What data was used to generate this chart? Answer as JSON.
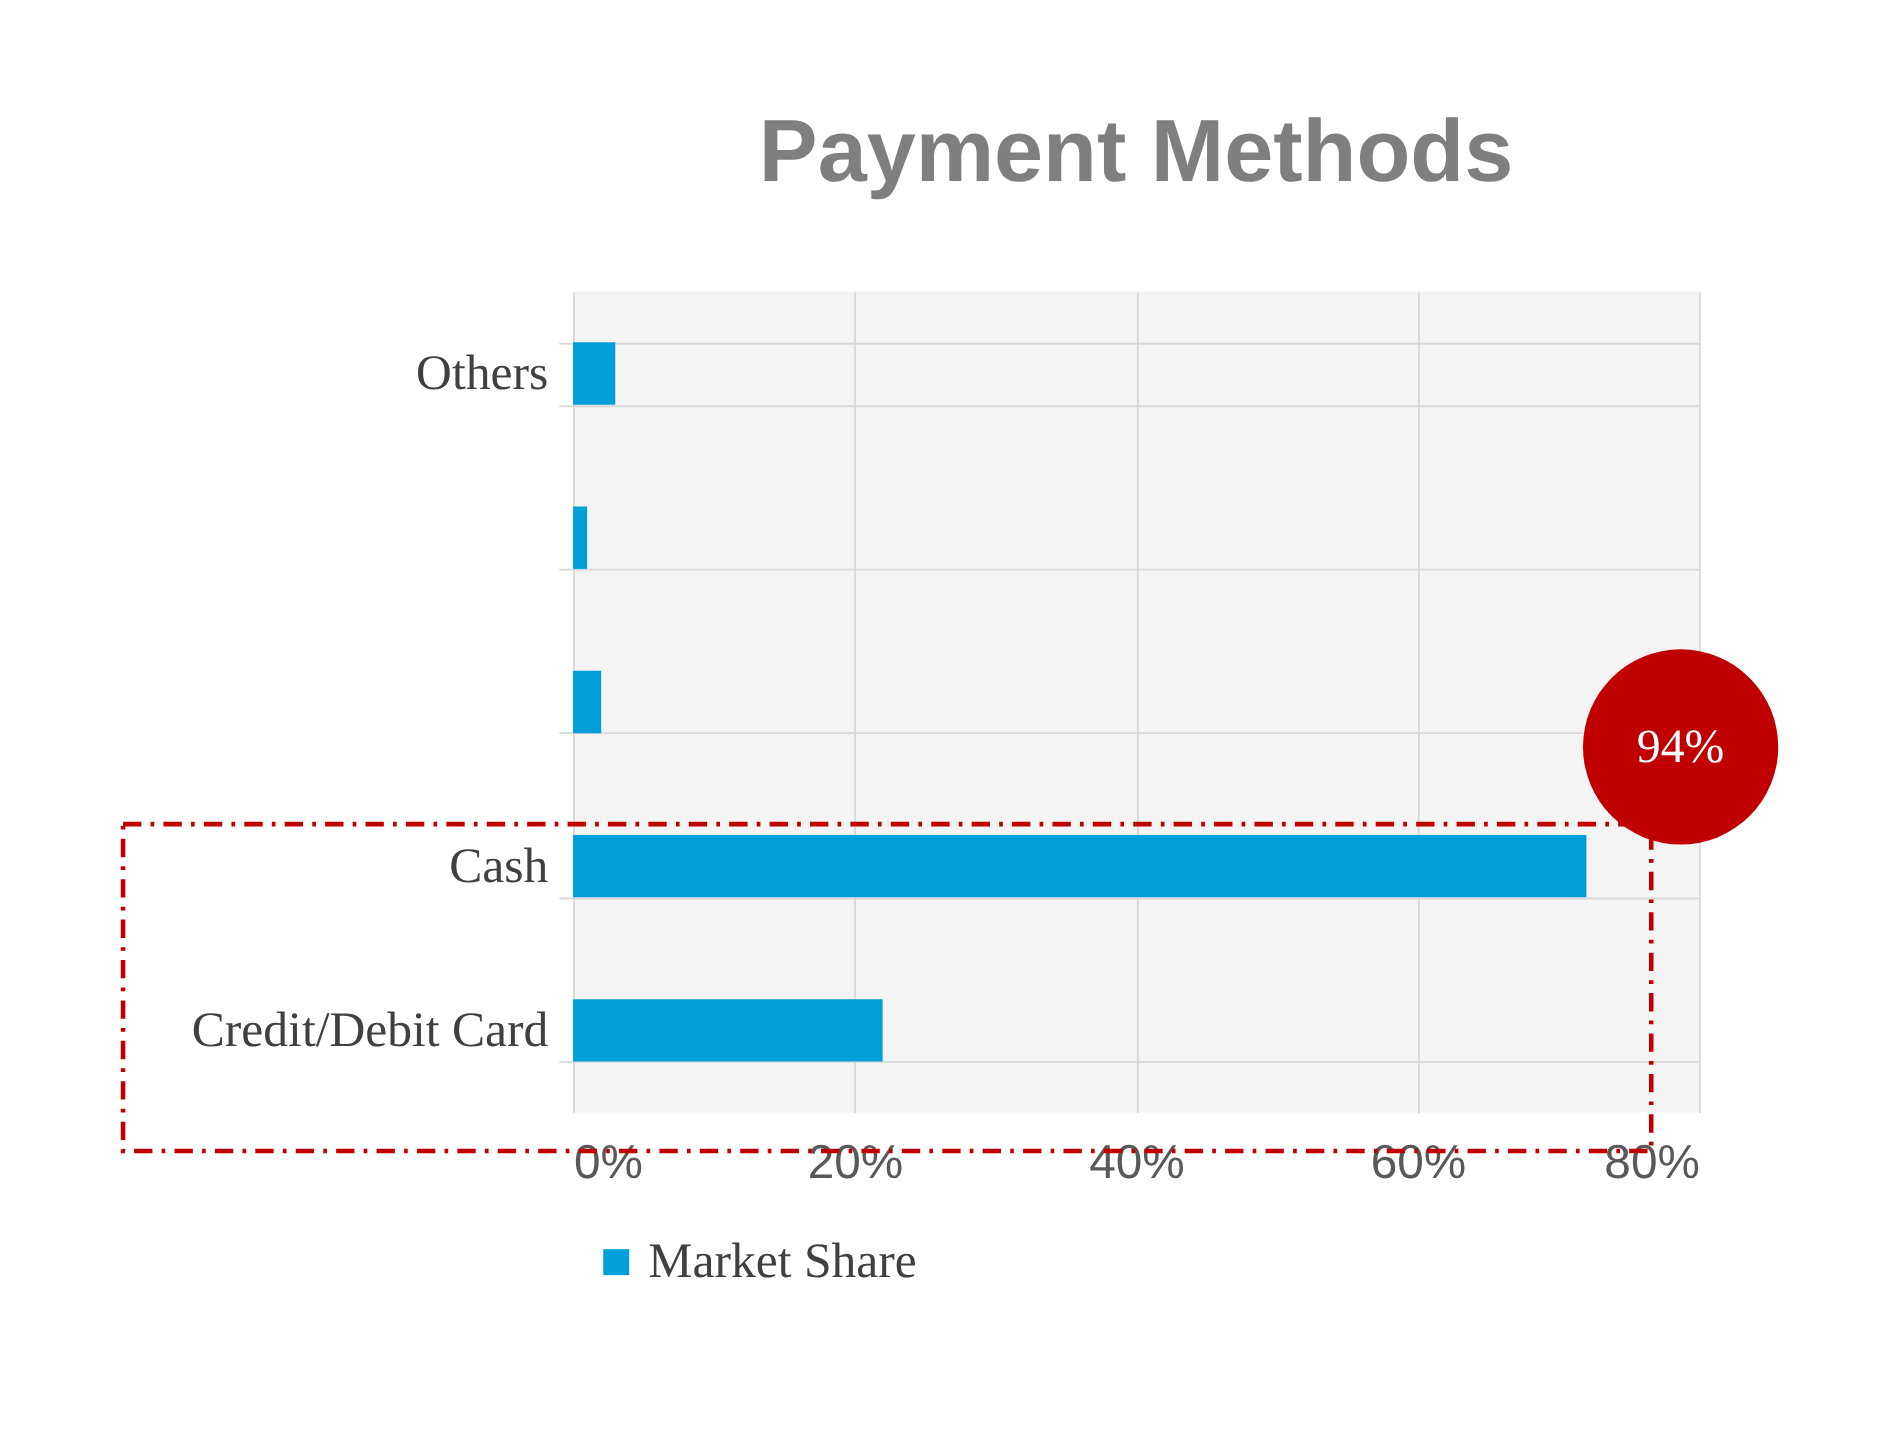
{
  "chart_data": {
    "type": "bar",
    "orientation": "horizontal",
    "title": "Payment Methods",
    "categories": [
      "Others",
      null,
      null,
      "Cash",
      "Credit/Debit Card"
    ],
    "series": [
      {
        "name": "Market Share",
        "color": "#009fda",
        "values": [
          3,
          1,
          2,
          72,
          22
        ]
      }
    ],
    "xlim": [
      0,
      80
    ],
    "xticks": [
      {
        "value": 0,
        "label": "0%"
      },
      {
        "value": 20,
        "label": "20%"
      },
      {
        "value": 40,
        "label": "40%"
      },
      {
        "value": 60,
        "label": "60%"
      },
      {
        "value": 80,
        "label": "80%"
      }
    ],
    "grid": true,
    "legend": "bottom",
    "annotations": [
      "94%"
    ]
  }
}
